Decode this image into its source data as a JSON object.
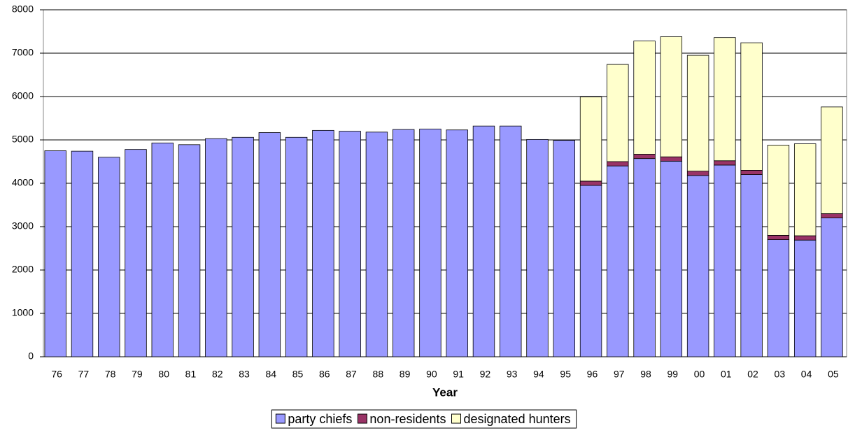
{
  "chart_data": {
    "type": "stacked_bar",
    "x_label": "Year",
    "categories": [
      "76",
      "77",
      "78",
      "79",
      "80",
      "81",
      "82",
      "83",
      "84",
      "85",
      "86",
      "87",
      "88",
      "89",
      "90",
      "91",
      "92",
      "93",
      "94",
      "95",
      "96",
      "97",
      "98",
      "99",
      "00",
      "01",
      "02",
      "03",
      "04",
      "05"
    ],
    "series": [
      {
        "name": "party chiefs",
        "color": "#9999ff",
        "values": [
          4750,
          4740,
          4600,
          4780,
          4930,
          4890,
          5030,
          5060,
          5170,
          5060,
          5220,
          5200,
          5180,
          5240,
          5250,
          5230,
          5320,
          5320,
          5010,
          4990,
          3950,
          4400,
          4570,
          4510,
          4180,
          4420,
          4200,
          2700,
          2690,
          3200
        ]
      },
      {
        "name": "non-residents",
        "color": "#993366",
        "values": [
          null,
          null,
          null,
          null,
          null,
          null,
          null,
          null,
          null,
          null,
          null,
          null,
          null,
          null,
          null,
          null,
          null,
          null,
          null,
          null,
          100,
          100,
          100,
          100,
          100,
          100,
          100,
          100,
          100,
          100
        ]
      },
      {
        "name": "designated hunters",
        "color": "#ffffcc",
        "values": [
          null,
          null,
          null,
          null,
          null,
          null,
          null,
          null,
          null,
          null,
          null,
          null,
          null,
          null,
          null,
          null,
          null,
          null,
          null,
          null,
          1940,
          2240,
          2610,
          2770,
          2670,
          2840,
          2940,
          2080,
          2120,
          2460
        ]
      }
    ],
    "ylim": [
      0,
      8000
    ],
    "yticks": [
      0,
      1000,
      2000,
      3000,
      4000,
      5000,
      6000,
      7000,
      8000
    ],
    "grid": true
  }
}
